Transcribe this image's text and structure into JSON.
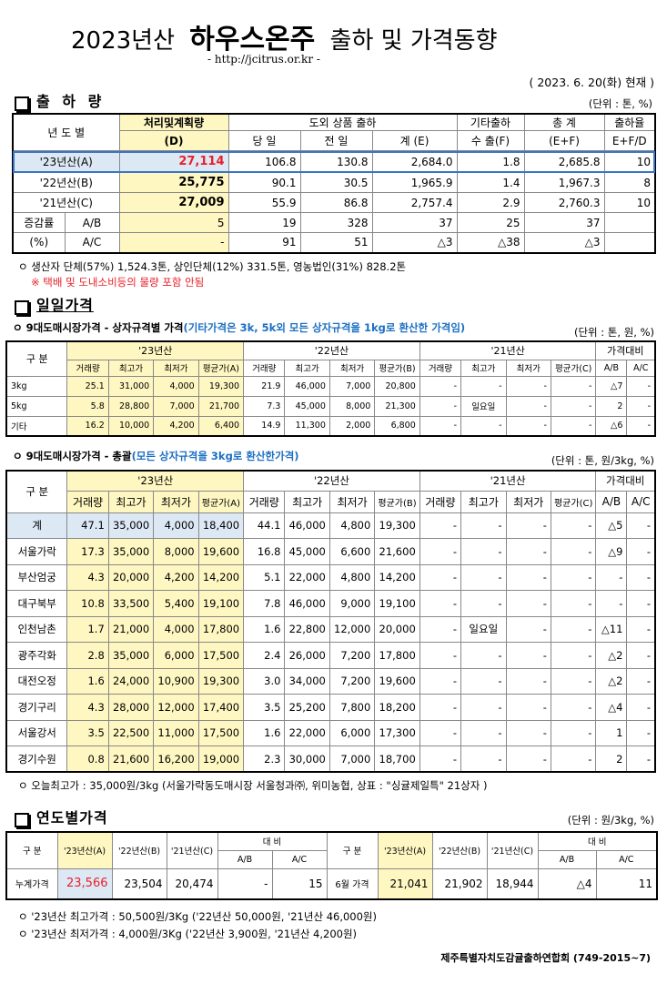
{
  "header": {
    "title_year": "2023년산",
    "title_bold": "하우스온주",
    "title_rest": "출하 및 가격동향",
    "url": "- http://jcitrus.or.kr -",
    "date": "( 2023. 6. 20(화) 현재 )"
  },
  "shipment": {
    "section_title": "출 하 량",
    "unit": "(단위 : 톤, %)",
    "headers": {
      "year": "년 도 별",
      "plan": "처리및계획량",
      "plan_sub": "(D)",
      "inout": "도외 상품 출하",
      "day": "당 일",
      "prev": "전 일",
      "sum": "계 (E)",
      "other": "기타출하",
      "export": "수 출(F)",
      "total": "총  계",
      "total_sub": "(E+F)",
      "rate": "출하율",
      "rate_sub": "E+F/D"
    },
    "rows": [
      {
        "year": "'23년산(A)",
        "plan": "27,114",
        "day": "106.8",
        "prev": "130.8",
        "sum": "2,684.0",
        "export": "1.8",
        "total": "2,685.8",
        "rate": "10"
      },
      {
        "year": "'22년산(B)",
        "plan": "25,775",
        "day": "90.1",
        "prev": "30.5",
        "sum": "1,965.9",
        "export": "1.4",
        "total": "1,967.3",
        "rate": "8"
      },
      {
        "year": "'21년산(C)",
        "plan": "27,009",
        "day": "55.9",
        "prev": "86.8",
        "sum": "2,757.4",
        "export": "2.9",
        "total": "2,760.3",
        "rate": "10"
      }
    ],
    "change": {
      "label1": "증감률",
      "label2": "(%)",
      "ab_label": "A/B",
      "ac_label": "A/C",
      "ab": [
        "5",
        "19",
        "328",
        "37",
        "25",
        "37",
        ""
      ],
      "ac": [
        "-",
        "91",
        "51",
        "△3",
        "△38",
        "△3",
        ""
      ]
    },
    "note1": "ㅇ 생산자 단체(57%) 1,524.3톤,  상인단체(12%) 331.5톤, 영농법인(31%) 828.2톤",
    "note2": "※ 택배 및 도내소비등의 물량 포함 안됨"
  },
  "daily": {
    "section_title": "일일가격",
    "t1_title": "ㅇ 9대도매시장가격 - 상자규격별 가격",
    "t1_title_blue": "(기타가격은 3k, 5k외 모든 상자규격을 1kg로 환산한 가격임)",
    "t1_unit": "(단위 : 톤, 원, %)",
    "cols": {
      "gubun": "구  분",
      "y23": "'23년산",
      "y22": "'22년산",
      "y21": "'21년산",
      "cmp": "가격대비",
      "vol": "거래량",
      "max": "최고가",
      "min": "최저가",
      "avgA": "평균가(A)",
      "avgB": "평균가(B)",
      "avgC": "평균가(C)",
      "ab": "A/B",
      "ac": "A/C"
    },
    "t1_rows": [
      {
        "name": "3kg",
        "v": [
          "25.1",
          "31,000",
          "4,000",
          "19,300",
          "21.9",
          "46,000",
          "7,000",
          "20,800",
          "-",
          "-",
          "-",
          "-",
          "△7",
          "-"
        ]
      },
      {
        "name": "5kg",
        "v": [
          "5.8",
          "28,800",
          "7,000",
          "21,700",
          "7.3",
          "45,000",
          "8,000",
          "21,300",
          "-",
          "일요일",
          "-",
          "-",
          "2",
          "-"
        ]
      },
      {
        "name": "기타",
        "v": [
          "16.2",
          "10,000",
          "4,200",
          "6,400",
          "14.9",
          "11,300",
          "2,000",
          "6,800",
          "-",
          "-",
          "-",
          "-",
          "△6",
          "-"
        ]
      }
    ],
    "t2_title": "ㅇ 9대도매시장가격 - 총괄",
    "t2_title_blue": "(모든 상자규격을 3kg로 환산한가격)",
    "t2_unit": "(단위 : 톤, 원/3kg, %)",
    "t2_rows": [
      {
        "name": "계",
        "v": [
          "47.1",
          "35,000",
          "4,000",
          "18,400",
          "44.1",
          "46,000",
          "4,800",
          "19,300",
          "-",
          "-",
          "-",
          "-",
          "△5",
          "-"
        ]
      },
      {
        "name": "서울가락",
        "v": [
          "17.3",
          "35,000",
          "8,000",
          "19,600",
          "16.8",
          "45,000",
          "6,600",
          "21,600",
          "-",
          "-",
          "-",
          "-",
          "△9",
          "-"
        ]
      },
      {
        "name": "부산엄궁",
        "v": [
          "4.3",
          "20,000",
          "4,200",
          "14,200",
          "5.1",
          "22,000",
          "4,800",
          "14,200",
          "-",
          "-",
          "-",
          "-",
          "-",
          "-"
        ]
      },
      {
        "name": "대구북부",
        "v": [
          "10.8",
          "33,500",
          "5,400",
          "19,100",
          "7.8",
          "46,000",
          "9,000",
          "19,100",
          "-",
          "-",
          "-",
          "-",
          "-",
          "-"
        ]
      },
      {
        "name": "인천남촌",
        "v": [
          "1.7",
          "21,000",
          "4,000",
          "17,800",
          "1.6",
          "22,800",
          "12,000",
          "20,000",
          "-",
          "일요일",
          "-",
          "-",
          "△11",
          "-"
        ]
      },
      {
        "name": "광주각화",
        "v": [
          "2.8",
          "35,000",
          "6,000",
          "17,500",
          "2.4",
          "26,000",
          "7,200",
          "17,800",
          "-",
          "-",
          "-",
          "-",
          "△2",
          "-"
        ]
      },
      {
        "name": "대전오정",
        "v": [
          "1.6",
          "24,000",
          "10,900",
          "19,300",
          "3.0",
          "34,000",
          "7,200",
          "19,600",
          "-",
          "-",
          "-",
          "-",
          "△2",
          "-"
        ]
      },
      {
        "name": "경기구리",
        "v": [
          "4.3",
          "28,000",
          "12,000",
          "17,400",
          "3.5",
          "25,200",
          "7,800",
          "18,200",
          "-",
          "-",
          "-",
          "-",
          "△4",
          "-"
        ]
      },
      {
        "name": "서울강서",
        "v": [
          "3.5",
          "22,500",
          "11,000",
          "17,500",
          "1.6",
          "22,000",
          "6,000",
          "17,300",
          "-",
          "-",
          "-",
          "-",
          "1",
          "-"
        ]
      },
      {
        "name": "경기수원",
        "v": [
          "0.8",
          "21,600",
          "16,200",
          "19,000",
          "2.3",
          "30,000",
          "7,000",
          "18,700",
          "-",
          "-",
          "-",
          "-",
          "2",
          "-"
        ]
      }
    ],
    "note": "ㅇ 오늘최고가 : 35,000원/3kg (서울가락동도매시장 서울청과㈜, 위미농협, 상표 : \"싱귤제일특\" 21상자 )"
  },
  "yearly": {
    "section_title": "연도별가격",
    "unit": "(단위 : 원/3kg, %)",
    "headers": {
      "gubun": "구  분",
      "a": "'23년산(A)",
      "b": "'22년산(B)",
      "c": "'21년산(C)",
      "cmp": "대      비",
      "ab": "A/B",
      "ac": "A/C"
    },
    "left": {
      "name": "누계가격",
      "a": "23,566",
      "b": "23,504",
      "c": "20,474",
      "ab": "-",
      "ac": "15"
    },
    "right": {
      "name": "6월 가격",
      "a": "21,041",
      "b": "21,902",
      "c": "18,944",
      "ab": "△4",
      "ac": "11"
    },
    "note1": "ㅇ '23년산 최고가격 : 50,500원/3Kg ('22년산 50,000원, '21년산 46,000원)",
    "note2": "ㅇ '23년산 최저가격 :   4,000원/3Kg ('22년산  3,900원, '21년산  4,200원)"
  },
  "footer": "제주특별자치도감귤출하연합회 (749-2015~7)"
}
